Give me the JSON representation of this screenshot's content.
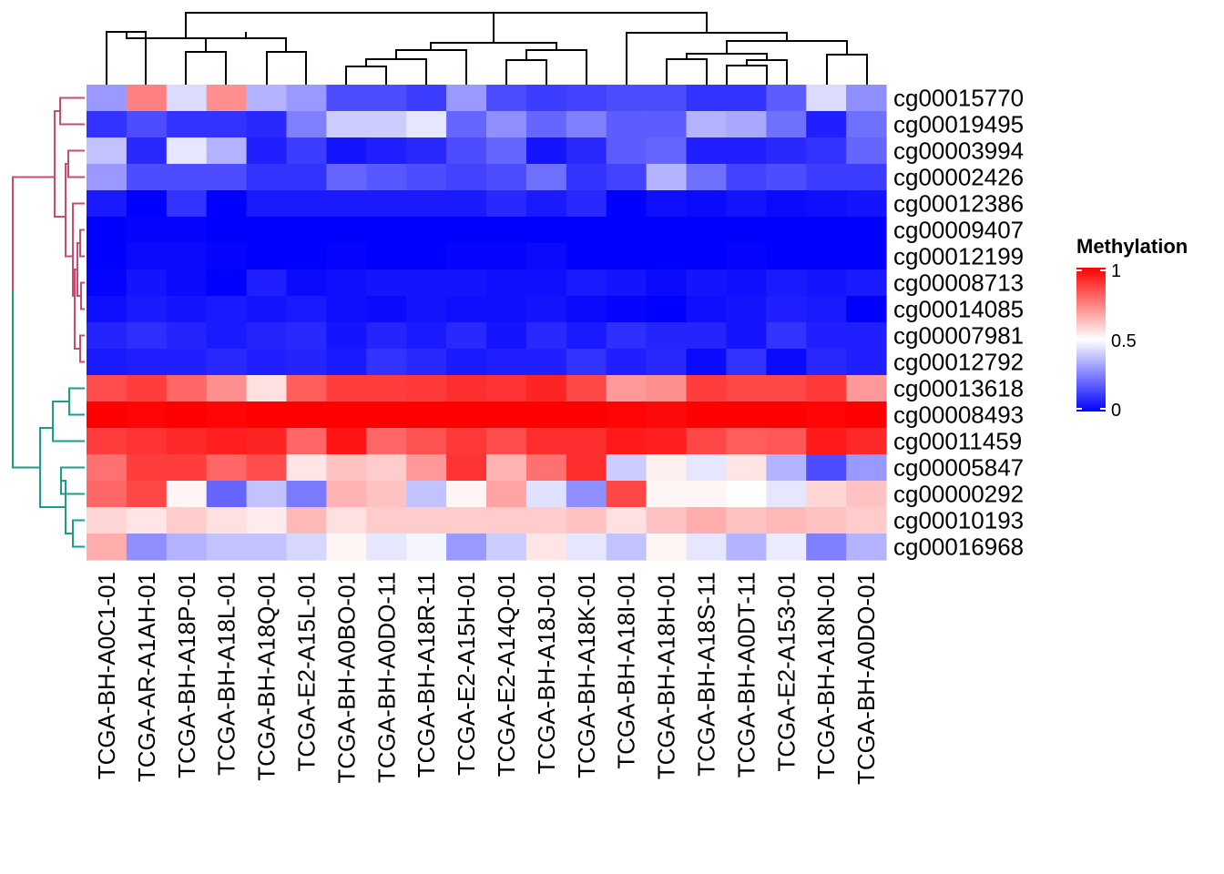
{
  "chart_data": {
    "type": "heatmap",
    "legend": {
      "title": "Methylation",
      "ticks": [
        "0",
        "0.5",
        "1"
      ],
      "range": [
        0,
        1
      ],
      "colors": {
        "low": "#0000ff",
        "mid": "#ffffff",
        "high": "#ff0000"
      }
    },
    "rows": [
      "cg00015770",
      "cg00019495",
      "cg00003994",
      "cg00002426",
      "cg00012386",
      "cg00009407",
      "cg00012199",
      "cg00008713",
      "cg00014085",
      "cg00007981",
      "cg00012792",
      "cg00013618",
      "cg00008493",
      "cg00011459",
      "cg00005847",
      "cg00000292",
      "cg00010193",
      "cg00016968"
    ],
    "columns": [
      "TCGA-BH-A0C1-01",
      "TCGA-AR-A1AH-01",
      "TCGA-BH-A18P-01",
      "TCGA-BH-A18L-01",
      "TCGA-BH-A18Q-01",
      "TCGA-E2-A15L-01",
      "TCGA-BH-A0BO-01",
      "TCGA-BH-A0DO-11",
      "TCGA-BH-A18R-11",
      "TCGA-E2-A15H-01",
      "TCGA-E2-A14Q-01",
      "TCGA-BH-A18J-01",
      "TCGA-BH-A18K-01",
      "TCGA-BH-A18I-01",
      "TCGA-BH-A18H-01",
      "TCGA-BH-A18S-11",
      "TCGA-BH-A0DT-11",
      "TCGA-E2-A153-01",
      "TCGA-BH-A18N-01",
      "TCGA-BH-A0DO-01"
    ],
    "values": [
      [
        0.3,
        0.75,
        0.43,
        0.72,
        0.35,
        0.3,
        0.15,
        0.15,
        0.12,
        0.3,
        0.15,
        0.12,
        0.13,
        0.15,
        0.15,
        0.1,
        0.1,
        0.18,
        0.43,
        0.28
      ],
      [
        0.1,
        0.15,
        0.1,
        0.1,
        0.08,
        0.25,
        0.4,
        0.4,
        0.45,
        0.2,
        0.28,
        0.2,
        0.25,
        0.18,
        0.18,
        0.35,
        0.33,
        0.22,
        0.06,
        0.22
      ],
      [
        0.38,
        0.08,
        0.45,
        0.35,
        0.06,
        0.12,
        0.04,
        0.06,
        0.08,
        0.15,
        0.2,
        0.04,
        0.08,
        0.18,
        0.2,
        0.06,
        0.06,
        0.08,
        0.1,
        0.2
      ],
      [
        0.3,
        0.15,
        0.15,
        0.15,
        0.1,
        0.1,
        0.2,
        0.17,
        0.15,
        0.13,
        0.15,
        0.22,
        0.1,
        0.13,
        0.35,
        0.22,
        0.13,
        0.15,
        0.12,
        0.12
      ],
      [
        0.05,
        0.0,
        0.1,
        0.0,
        0.05,
        0.05,
        0.05,
        0.05,
        0.05,
        0.05,
        0.08,
        0.05,
        0.08,
        0.0,
        0.03,
        0.02,
        0.04,
        0.02,
        0.03,
        0.04
      ],
      [
        0.0,
        0.01,
        0.01,
        0.0,
        0.0,
        0.0,
        0.0,
        0.0,
        0.0,
        0.0,
        0.0,
        0.0,
        0.0,
        0.0,
        0.0,
        0.0,
        0.0,
        0.0,
        0.0,
        0.0
      ],
      [
        0.0,
        0.02,
        0.02,
        0.01,
        0.0,
        0.0,
        0.01,
        0.0,
        0.0,
        0.01,
        0.01,
        0.02,
        0.0,
        0.0,
        0.0,
        0.0,
        0.01,
        0.0,
        0.0,
        0.0
      ],
      [
        0.01,
        0.04,
        0.02,
        0.0,
        0.06,
        0.02,
        0.03,
        0.04,
        0.04,
        0.04,
        0.03,
        0.03,
        0.05,
        0.04,
        0.02,
        0.04,
        0.03,
        0.05,
        0.04,
        0.05
      ],
      [
        0.03,
        0.05,
        0.04,
        0.05,
        0.04,
        0.05,
        0.03,
        0.02,
        0.04,
        0.03,
        0.03,
        0.04,
        0.02,
        0.01,
        0.0,
        0.03,
        0.04,
        0.06,
        0.05,
        0.0
      ],
      [
        0.07,
        0.09,
        0.07,
        0.05,
        0.07,
        0.08,
        0.04,
        0.07,
        0.05,
        0.08,
        0.04,
        0.08,
        0.05,
        0.09,
        0.07,
        0.07,
        0.04,
        0.1,
        0.06,
        0.06
      ],
      [
        0.05,
        0.06,
        0.06,
        0.08,
        0.06,
        0.07,
        0.05,
        0.1,
        0.08,
        0.05,
        0.06,
        0.06,
        0.1,
        0.06,
        0.08,
        0.02,
        0.1,
        0.02,
        0.08,
        0.06
      ],
      [
        0.85,
        0.88,
        0.8,
        0.72,
        0.56,
        0.82,
        0.88,
        0.88,
        0.89,
        0.91,
        0.9,
        0.93,
        0.86,
        0.7,
        0.72,
        0.88,
        0.86,
        0.86,
        0.89,
        0.7
      ],
      [
        1.0,
        0.99,
        1.0,
        0.99,
        1.0,
        1.0,
        1.0,
        1.0,
        1.0,
        1.0,
        1.0,
        1.0,
        1.0,
        0.99,
        0.98,
        1.0,
        1.0,
        1.0,
        0.99,
        1.0
      ],
      [
        0.88,
        0.9,
        0.92,
        0.94,
        0.93,
        0.8,
        0.96,
        0.8,
        0.84,
        0.89,
        0.85,
        0.91,
        0.91,
        0.95,
        0.94,
        0.86,
        0.82,
        0.83,
        0.95,
        0.92
      ],
      [
        0.78,
        0.88,
        0.88,
        0.8,
        0.85,
        0.55,
        0.62,
        0.6,
        0.7,
        0.9,
        0.65,
        0.78,
        0.91,
        0.4,
        0.53,
        0.45,
        0.55,
        0.35,
        0.15,
        0.3
      ],
      [
        0.8,
        0.86,
        0.52,
        0.2,
        0.38,
        0.24,
        0.65,
        0.62,
        0.38,
        0.52,
        0.68,
        0.44,
        0.28,
        0.86,
        0.52,
        0.52,
        0.5,
        0.45,
        0.58,
        0.62
      ],
      [
        0.58,
        0.55,
        0.6,
        0.56,
        0.54,
        0.64,
        0.56,
        0.6,
        0.6,
        0.6,
        0.6,
        0.6,
        0.62,
        0.56,
        0.62,
        0.66,
        0.62,
        0.64,
        0.62,
        0.6
      ],
      [
        0.66,
        0.28,
        0.35,
        0.38,
        0.38,
        0.42,
        0.52,
        0.45,
        0.48,
        0.3,
        0.4,
        0.55,
        0.45,
        0.38,
        0.52,
        0.45,
        0.35,
        0.46,
        0.25,
        0.35
      ]
    ],
    "row_clusters": [
      {
        "name": "",
        "color": "#c94c6e",
        "rows": [
          0,
          10
        ]
      },
      {
        "name": "",
        "color": "#1a9e8a",
        "rows": [
          11,
          17
        ]
      }
    ]
  }
}
